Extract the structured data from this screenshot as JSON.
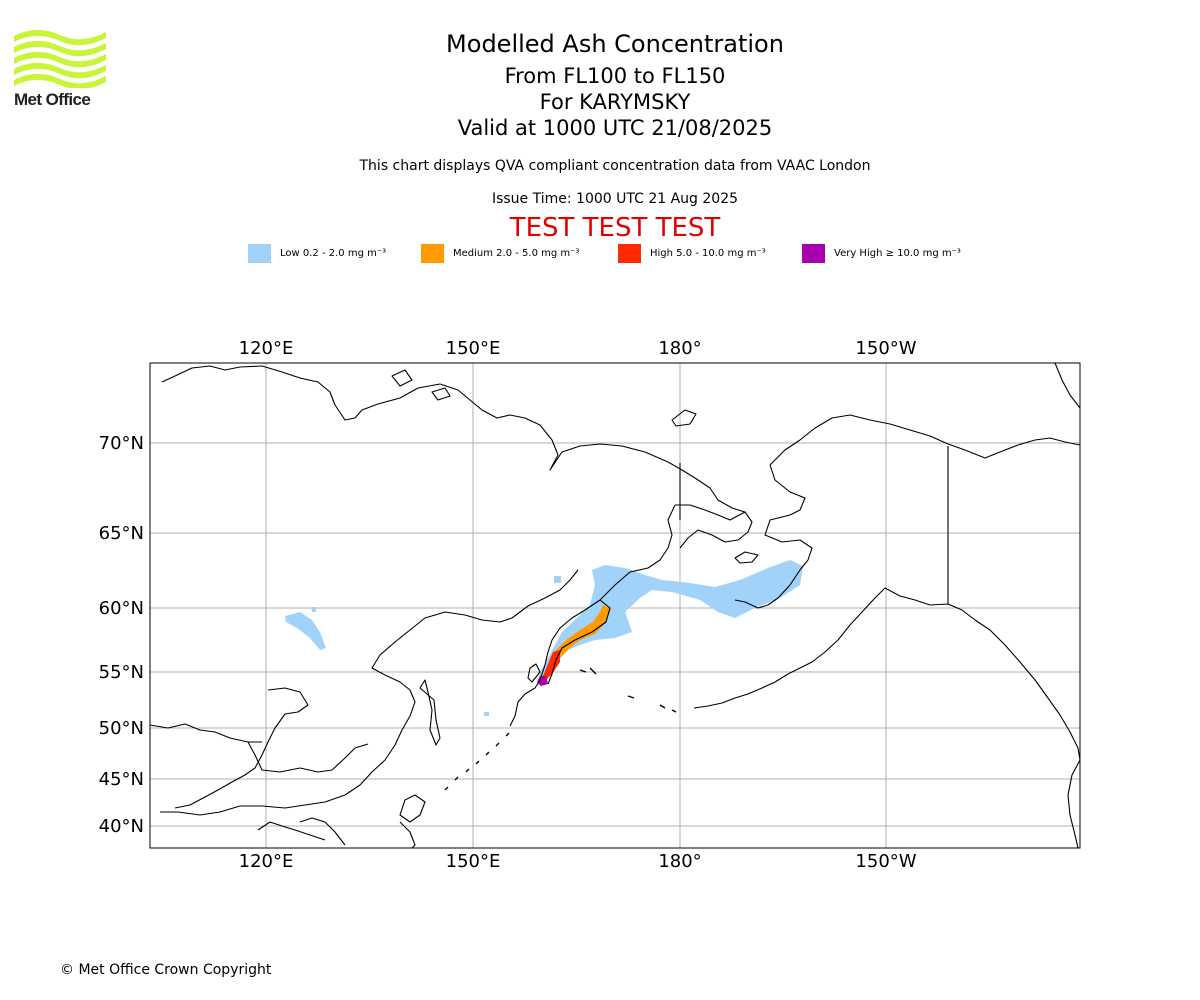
{
  "logo": {
    "text": "Met Office",
    "color": "#c8f53a"
  },
  "header": {
    "title": "Modelled Ash Concentration",
    "level": "From FL100 to FL150",
    "volcano": "For KARYMSKY",
    "valid": "Valid at 1000 UTC 21/08/2025",
    "note": "This chart displays QVA compliant concentration data from VAAC London",
    "issue": "Issue Time: 1000 UTC 21 Aug 2025",
    "test_banner": "TEST TEST TEST",
    "test_color": "#e00000"
  },
  "legend": [
    {
      "label": "Low 0.2 - 2.0 mg m⁻³",
      "color": "#a0d2fa"
    },
    {
      "label": "Medium 2.0 - 5.0 mg m⁻³",
      "color": "#ff9a00"
    },
    {
      "label": "High 5.0 - 10.0 mg m⁻³",
      "color": "#ff2a00"
    },
    {
      "label": "Very High  ≥  10.0 mg m⁻³",
      "color": "#a600b0"
    }
  ],
  "map": {
    "lon_labels": [
      "120°E",
      "150°E",
      "180°",
      "150°W"
    ],
    "lat_labels": [
      "70°N",
      "65°N",
      "60°N",
      "55°N",
      "50°N",
      "45°N",
      "40°N"
    ]
  },
  "footer": {
    "copyright": "© Met Office Crown Copyright"
  }
}
